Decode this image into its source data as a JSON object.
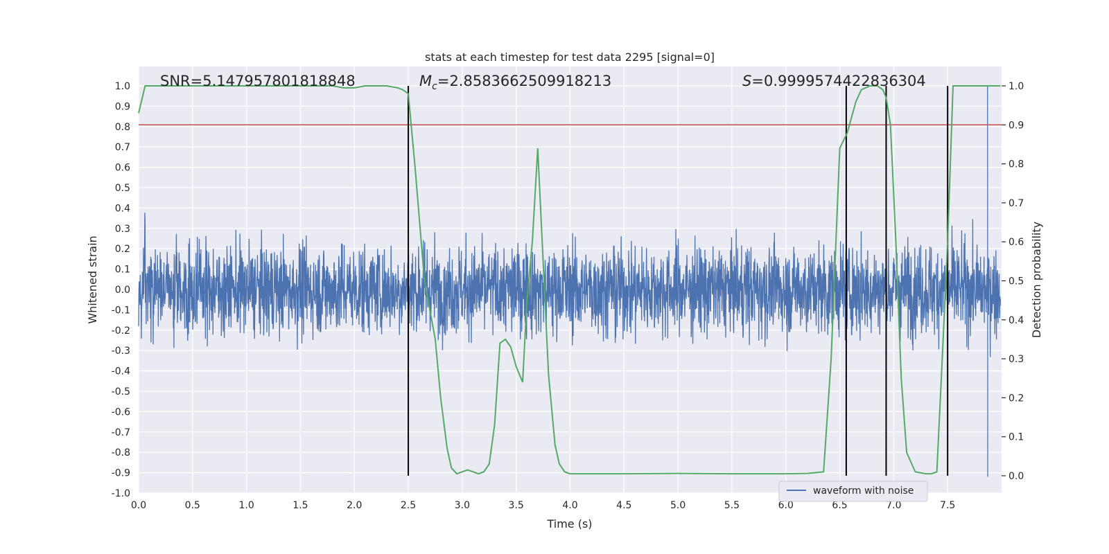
{
  "chart_data": {
    "type": "line",
    "title": "stats at each timestep for test data 2295 [signal=0]",
    "xlabel": "Time (s)",
    "ylabel": "Whitened strain",
    "ylabel_right": "Detection probability",
    "xlim": [
      0.0,
      8.0
    ],
    "ylim": [
      -1.0,
      1.0
    ],
    "ylim_right": [
      0.0,
      1.0
    ],
    "x_ticks": [
      "0.0",
      "0.5",
      "1.0",
      "1.5",
      "2.0",
      "2.5",
      "3.0",
      "3.5",
      "4.0",
      "4.5",
      "5.0",
      "5.5",
      "6.0",
      "6.5",
      "7.0",
      "7.5"
    ],
    "y_ticks": [
      "1.0",
      "0.9",
      "0.8",
      "0.7",
      "0.6",
      "0.5",
      "0.4",
      "0.3",
      "0.2",
      "0.1",
      "0.0",
      "-0.1",
      "-0.2",
      "-0.3",
      "-0.4",
      "-0.5",
      "-0.6",
      "-0.7",
      "-0.8",
      "-0.9",
      "-1.0"
    ],
    "y_ticks_right": [
      "1.0",
      "0.9",
      "0.8",
      "0.7",
      "0.6",
      "0.5",
      "0.4",
      "0.3",
      "0.2",
      "0.1",
      "0.0"
    ],
    "grid": true,
    "annotations": {
      "snr": {
        "prefix": "SNR=",
        "value": "5.147957801818848"
      },
      "mc": {
        "symbol": "M",
        "sub": "c",
        "prefix": "=",
        "value": "2.8583662509918213"
      },
      "s": {
        "symbol": "S",
        "prefix": "=",
        "value": "0.9999574422836304"
      }
    },
    "legend": {
      "placement": "lower-right",
      "entries": [
        "waveform with noise"
      ]
    },
    "threshold_line": {
      "value": 0.9,
      "axis": "right",
      "color": "#c44e52"
    },
    "vertical_lines": [
      2.5,
      6.56,
      6.93,
      7.5
    ],
    "waveform": {
      "name": "waveform with noise",
      "color": "#4c72b0",
      "x_range": [
        0.0,
        7.99
      ],
      "typical_amplitude": 0.3,
      "peak_max": 1.0,
      "peak_min": -0.92
    },
    "probability": {
      "color": "#55a868",
      "x": [
        0.0,
        0.06,
        0.2,
        0.4,
        0.6,
        0.8,
        1.0,
        1.2,
        1.4,
        1.6,
        1.8,
        1.9,
        2.0,
        2.1,
        2.2,
        2.3,
        2.4,
        2.45,
        2.5,
        2.56,
        2.65,
        2.75,
        2.8,
        2.86,
        2.9,
        2.95,
        3.0,
        3.05,
        3.1,
        3.15,
        3.2,
        3.25,
        3.3,
        3.35,
        3.4,
        3.45,
        3.5,
        3.56,
        3.6,
        3.65,
        3.7,
        3.75,
        3.8,
        3.86,
        3.9,
        3.95,
        4.0,
        4.5,
        5.0,
        5.5,
        6.0,
        6.2,
        6.35,
        6.42,
        6.5,
        6.57,
        6.65,
        6.7,
        6.78,
        6.85,
        6.9,
        6.93,
        6.97,
        7.02,
        7.07,
        7.12,
        7.2,
        7.3,
        7.35,
        7.4,
        7.45,
        7.5,
        7.55,
        7.6,
        7.7,
        7.8,
        7.99
      ],
      "y": [
        0.93,
        1.0,
        1.0,
        1.0,
        1.0,
        1.0,
        1.0,
        1.0,
        1.0,
        1.0,
        1.0,
        0.995,
        0.995,
        1.0,
        1.0,
        1.0,
        0.995,
        0.99,
        0.98,
        0.8,
        0.5,
        0.35,
        0.2,
        0.07,
        0.02,
        0.005,
        0.01,
        0.015,
        0.01,
        0.005,
        0.01,
        0.03,
        0.13,
        0.34,
        0.35,
        0.33,
        0.28,
        0.24,
        0.45,
        0.6,
        0.84,
        0.55,
        0.26,
        0.08,
        0.03,
        0.01,
        0.005,
        0.005,
        0.006,
        0.005,
        0.005,
        0.006,
        0.01,
        0.3,
        0.84,
        0.88,
        0.96,
        0.99,
        1.0,
        1.0,
        0.99,
        0.97,
        0.9,
        0.6,
        0.25,
        0.06,
        0.01,
        0.005,
        0.005,
        0.01,
        0.3,
        0.6,
        1.0,
        1.0,
        1.0,
        1.0,
        1.0
      ]
    }
  }
}
